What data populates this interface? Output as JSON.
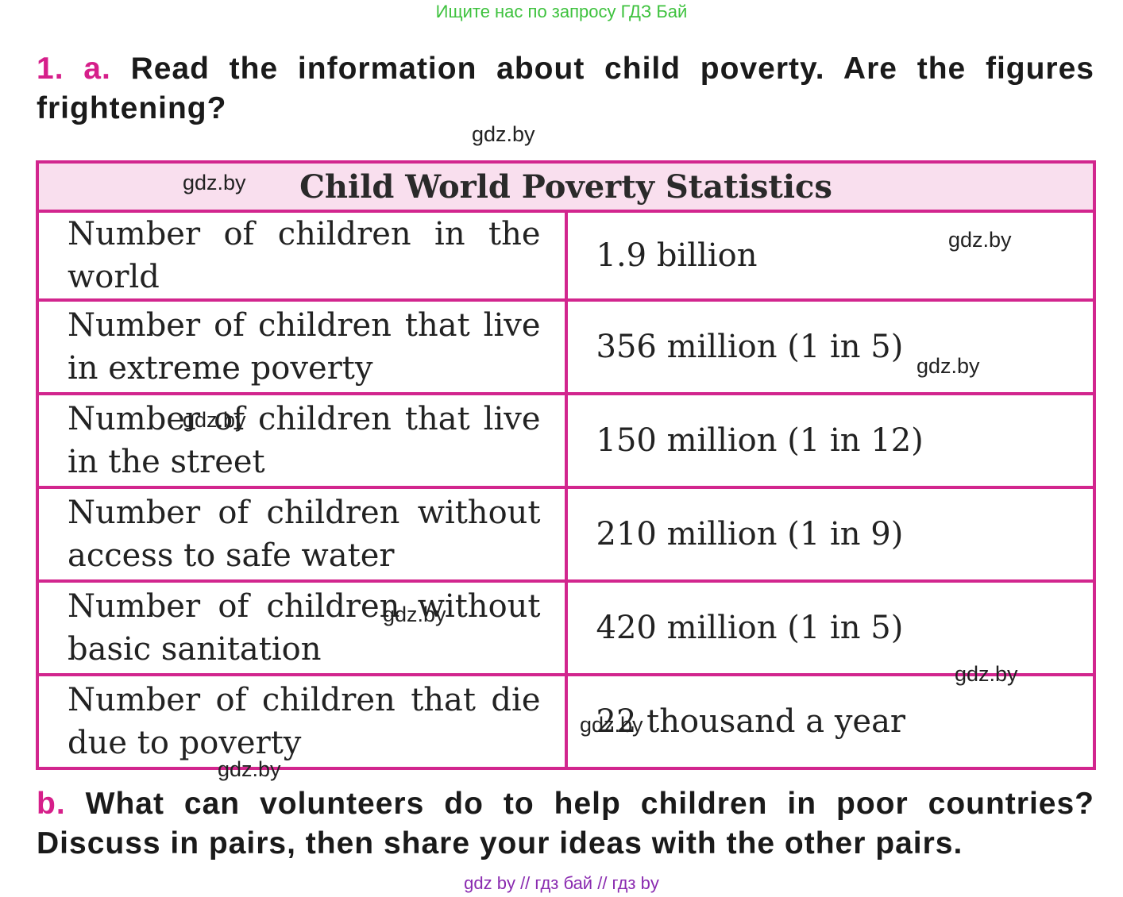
{
  "banner": "Ищите нас по запросу ГДЗ Бай",
  "task_a": {
    "number": "1. a.",
    "text": "Read the information about child poverty. Are the figures frightening?"
  },
  "table": {
    "title": "Child World Poverty Statistics",
    "rows": [
      {
        "label": "Number of children in the world",
        "value": "1.9 billion"
      },
      {
        "label": "Number of children that live in extreme poverty",
        "value": "356 million (1 in 5)"
      },
      {
        "label": "Number of children that live in the street",
        "value": "150 million (1 in 12)"
      },
      {
        "label": "Number of children without access to safe water",
        "value": "210 million (1 in 9)"
      },
      {
        "label": "Number of children without basic sanitation",
        "value": "420 million (1 in 5)"
      },
      {
        "label": "Number of children that die due to poverty",
        "value": "22 thousand a year"
      }
    ]
  },
  "task_b": {
    "number": "b.",
    "text": "What can volunteers do to help children in poor countries? Discuss in pairs, then share your ideas with the other pairs."
  },
  "watermark": "gdz.by",
  "footer": "gdz by  //  гдз бай  //  гдз by"
}
